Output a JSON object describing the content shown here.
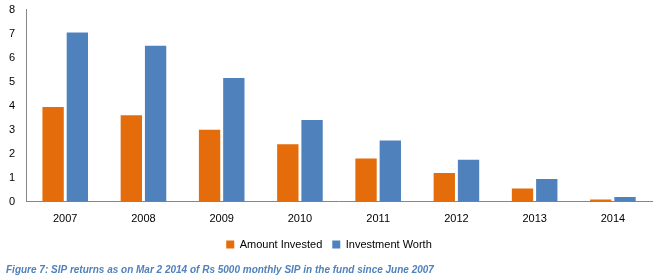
{
  "chart_data": {
    "type": "bar",
    "title": "Figure 7: SIP returns as on Mar 2 2014 of Rs 5000 monthly SIP in the fund since June 2007",
    "categories": [
      "2007",
      "2008",
      "2009",
      "2010",
      "2011",
      "2012",
      "2013",
      "2014"
    ],
    "series": [
      {
        "name": "Amount Invested",
        "color": "#e46c0a",
        "values": [
          3.95,
          3.6,
          3.0,
          2.4,
          1.8,
          1.2,
          0.55,
          0.1
        ]
      },
      {
        "name": "Investment Worth",
        "color": "#4f81bd",
        "values": [
          7.05,
          6.5,
          5.15,
          3.4,
          2.55,
          1.75,
          0.95,
          0.2
        ]
      }
    ],
    "ylim": [
      0,
      8
    ],
    "yticks": [
      0,
      1,
      2,
      3,
      4,
      5,
      6,
      7,
      8
    ],
    "grid": false,
    "legend": "bottom"
  }
}
